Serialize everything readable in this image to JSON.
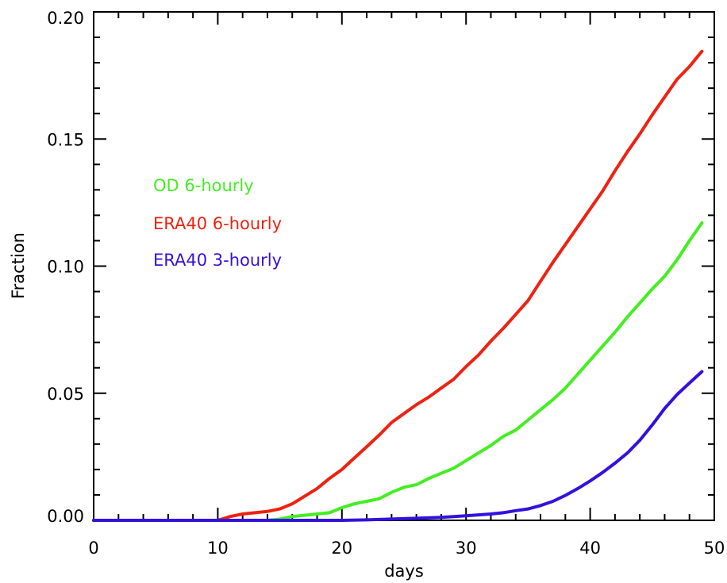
{
  "chart_data": {
    "type": "line",
    "title": "",
    "xlabel": "days",
    "ylabel": "Fraction",
    "xlim": [
      0,
      50
    ],
    "ylim": [
      0.0,
      0.2
    ],
    "xticks": [
      0,
      10,
      20,
      30,
      40,
      50
    ],
    "xtick_labels": [
      "0",
      "10",
      "20",
      "30",
      "40",
      "50"
    ],
    "yticks": [
      0.0,
      0.05,
      0.1,
      0.15,
      0.2
    ],
    "ytick_labels": [
      "0.00",
      "0.05",
      "0.10",
      "0.15",
      "0.20"
    ],
    "grid": false,
    "legend_placement": "upper-left",
    "series": [
      {
        "name": "OD 6-hourly",
        "color": "#44ee22",
        "x": [
          0,
          10,
          14,
          15,
          16,
          17,
          18,
          19,
          20,
          21,
          22,
          23,
          24,
          25,
          26,
          27,
          28,
          29,
          30,
          31,
          32,
          33,
          34,
          35,
          36,
          37,
          38,
          39,
          40,
          41,
          42,
          43,
          44,
          45,
          46,
          47,
          48,
          49
        ],
        "y": [
          0.0,
          0.0,
          0.0,
          0.0005,
          0.0015,
          0.002,
          0.0025,
          0.003,
          0.005,
          0.0065,
          0.0075,
          0.0085,
          0.011,
          0.013,
          0.014,
          0.0165,
          0.0185,
          0.0205,
          0.0235,
          0.0265,
          0.0295,
          0.033,
          0.0355,
          0.0395,
          0.0435,
          0.0475,
          0.052,
          0.0575,
          0.063,
          0.0685,
          0.074,
          0.08,
          0.0855,
          0.091,
          0.096,
          0.1025,
          0.11,
          0.117
        ]
      },
      {
        "name": "ERA40 6-hourly",
        "color": "#ee2211",
        "x": [
          0,
          10,
          11,
          12,
          13,
          14,
          15,
          16,
          17,
          18,
          19,
          20,
          21,
          22,
          23,
          24,
          25,
          26,
          27,
          28,
          29,
          30,
          31,
          32,
          33,
          34,
          35,
          36,
          37,
          38,
          39,
          40,
          41,
          42,
          43,
          44,
          45,
          46,
          47,
          48,
          49
        ],
        "y": [
          0.0,
          0.0,
          0.0015,
          0.0025,
          0.003,
          0.0035,
          0.0045,
          0.0065,
          0.0095,
          0.0125,
          0.0165,
          0.02,
          0.0245,
          0.029,
          0.0335,
          0.0385,
          0.042,
          0.0455,
          0.0485,
          0.052,
          0.0555,
          0.0605,
          0.065,
          0.0705,
          0.0755,
          0.081,
          0.0865,
          0.094,
          0.1015,
          0.1085,
          0.1155,
          0.1225,
          0.1295,
          0.1375,
          0.145,
          0.152,
          0.1595,
          0.1665,
          0.1735,
          0.1785,
          0.1845
        ]
      },
      {
        "name": "ERA40 3-hourly",
        "color": "#3311dd",
        "x": [
          0,
          20,
          22,
          24,
          26,
          28,
          30,
          32,
          33,
          34,
          35,
          36,
          37,
          38,
          39,
          40,
          41,
          42,
          43,
          44,
          45,
          46,
          47,
          48,
          49
        ],
        "y": [
          0.0,
          0.0,
          0.0002,
          0.0005,
          0.0008,
          0.0012,
          0.0018,
          0.0025,
          0.003,
          0.0038,
          0.0045,
          0.0058,
          0.0075,
          0.0098,
          0.0125,
          0.0155,
          0.0188,
          0.0225,
          0.0265,
          0.0315,
          0.0375,
          0.044,
          0.0495,
          0.054,
          0.0585
        ]
      }
    ]
  }
}
